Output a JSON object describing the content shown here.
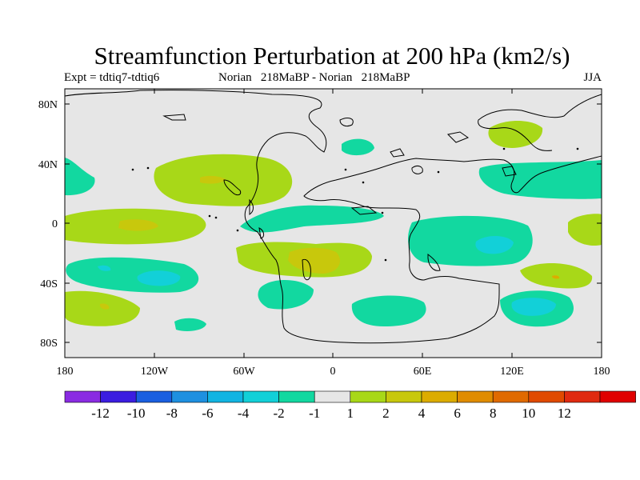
{
  "title": "Streamfunction Perturbation at 200 hPa (km2/s)",
  "subtitle_left": "Expt = tdtiq7-tdtiq6",
  "subtitle_center": "Norian   218MaBP - Norian   218MaBP",
  "subtitle_right": "JJA",
  "y_ticks": [
    "80N",
    "40N",
    "0",
    "40S",
    "80S"
  ],
  "x_ticks": [
    "180",
    "120W",
    "60W",
    "0",
    "60E",
    "120E",
    "180"
  ],
  "colorbar": {
    "colors": [
      "#8a2be2",
      "#3b1de0",
      "#1a5fe0",
      "#1e90e0",
      "#11b4e2",
      "#12d0d8",
      "#12d8a0",
      "#e6e6e6",
      "#a8d818",
      "#c8c80c",
      "#dcac00",
      "#e08c00",
      "#e06a00",
      "#e04a00",
      "#e02a10",
      "#e00000"
    ],
    "labels": [
      "-12",
      "-10",
      "-8",
      "-6",
      "-4",
      "-2",
      "-1",
      "1",
      "2",
      "4",
      "6",
      "8",
      "10",
      "12"
    ]
  }
}
